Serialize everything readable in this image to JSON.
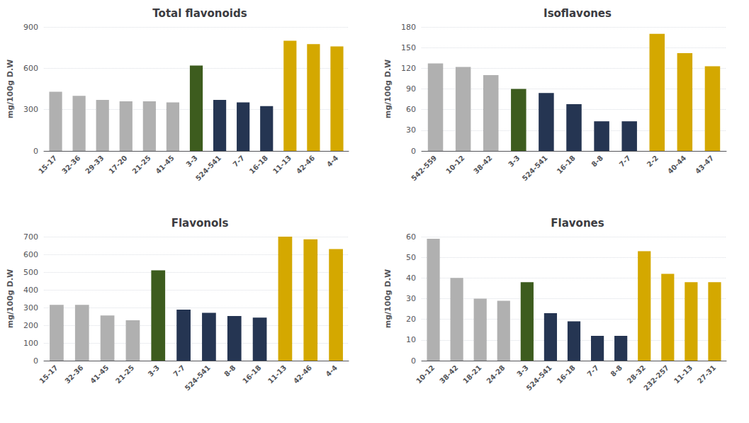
{
  "chart_data": [
    {
      "type": "bar",
      "title": "Total flavonoids",
      "ylabel": "mg/100g D.W",
      "categories": [
        "15-17",
        "32-36",
        "29-33",
        "17-20",
        "21-25",
        "41-45",
        "3-3",
        "524-541",
        "7-7",
        "16-18",
        "11-13",
        "42-46",
        "4-4"
      ],
      "values": [
        430,
        400,
        370,
        360,
        360,
        352,
        620,
        370,
        352,
        325,
        800,
        775,
        758
      ],
      "colors": [
        "#b0b0b0",
        "#b0b0b0",
        "#b0b0b0",
        "#b0b0b0",
        "#b0b0b0",
        "#b0b0b0",
        "#3d5c1e",
        "#253552",
        "#253552",
        "#253552",
        "#d4a800",
        "#d4a800",
        "#d4a800"
      ],
      "ylim": [
        0,
        900
      ],
      "yticks": [
        0,
        300,
        600,
        900
      ],
      "grid": true
    },
    {
      "type": "bar",
      "title": "Isoflavones",
      "ylabel": "mg/100g D.W",
      "categories": [
        "542-559",
        "10-12",
        "38-42",
        "3-3",
        "524-541",
        "16-18",
        "8-8",
        "7-7",
        "2-2",
        "40-44",
        "43-47"
      ],
      "values": [
        127,
        122,
        110,
        90,
        84,
        68,
        43,
        43,
        170,
        142,
        123
      ],
      "colors": [
        "#b0b0b0",
        "#b0b0b0",
        "#b0b0b0",
        "#3d5c1e",
        "#253552",
        "#253552",
        "#253552",
        "#253552",
        "#d4a800",
        "#d4a800",
        "#d4a800"
      ],
      "ylim": [
        0,
        180
      ],
      "yticks": [
        0,
        30,
        60,
        90,
        120,
        150,
        180
      ],
      "grid": true
    },
    {
      "type": "bar",
      "title": "Flavonols",
      "ylabel": "mg/100g D.W",
      "categories": [
        "15-17",
        "32-36",
        "41-45",
        "21-25",
        "3-3",
        "7-7",
        "524-541",
        "8-8",
        "16-18",
        "11-13",
        "42-46",
        "4-4"
      ],
      "values": [
        315,
        315,
        255,
        228,
        510,
        288,
        270,
        252,
        243,
        700,
        685,
        630
      ],
      "colors": [
        "#b0b0b0",
        "#b0b0b0",
        "#b0b0b0",
        "#b0b0b0",
        "#3d5c1e",
        "#253552",
        "#253552",
        "#253552",
        "#253552",
        "#d4a800",
        "#d4a800",
        "#d4a800"
      ],
      "ylim": [
        0,
        700
      ],
      "yticks": [
        0,
        100,
        200,
        300,
        400,
        500,
        600,
        700
      ],
      "grid": true
    },
    {
      "type": "bar",
      "title": "Flavones",
      "ylabel": "mg/100g D.W",
      "categories": [
        "10-12",
        "38-42",
        "18-21",
        "24-28",
        "3-3",
        "524-541",
        "16-18",
        "7-7",
        "8-8",
        "28-32",
        "232-257",
        "11-13",
        "27-31"
      ],
      "values": [
        59,
        40,
        30,
        29,
        38,
        23,
        19,
        12,
        12,
        53,
        42,
        38,
        38
      ],
      "colors": [
        "#b0b0b0",
        "#b0b0b0",
        "#b0b0b0",
        "#b0b0b0",
        "#3d5c1e",
        "#253552",
        "#253552",
        "#253552",
        "#253552",
        "#d4a800",
        "#d4a800",
        "#d4a800",
        "#d4a800"
      ],
      "ylim": [
        0,
        60
      ],
      "yticks": [
        0,
        10,
        20,
        30,
        40,
        50,
        60
      ],
      "grid": true
    }
  ]
}
